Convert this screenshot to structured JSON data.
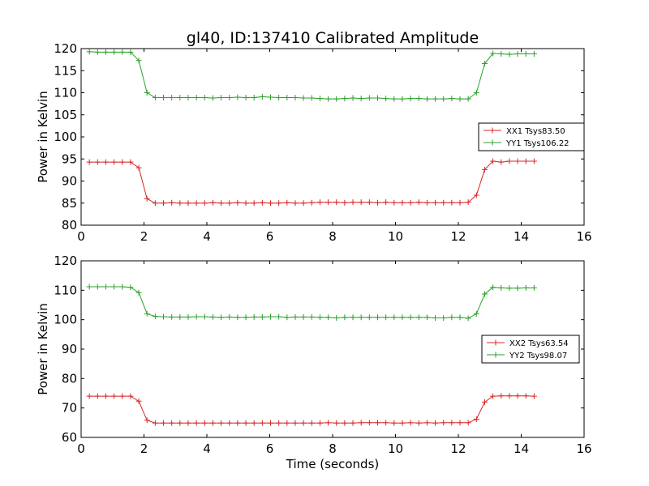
{
  "chart_data": [
    {
      "type": "line",
      "title": "gl40, ID:137410 Calibrated Amplitude",
      "xlabel": "",
      "ylabel": "Power in Kelvin",
      "xlim": [
        0,
        16
      ],
      "ylim": [
        80,
        120
      ],
      "xticks": [
        "0",
        "2",
        "4",
        "6",
        "8",
        "10",
        "12",
        "14",
        "16"
      ],
      "yticks": [
        "80",
        "85",
        "90",
        "95",
        "100",
        "105",
        "110",
        "115",
        "120"
      ],
      "grid": false,
      "legend_position": "right",
      "x": [
        0.262,
        0.524,
        0.786,
        1.048,
        1.31,
        1.572,
        1.834,
        2.096,
        2.358,
        2.62,
        2.882,
        3.144,
        3.406,
        3.668,
        3.93,
        4.192,
        4.454,
        4.716,
        4.978,
        5.24,
        5.502,
        5.764,
        6.026,
        6.288,
        6.55,
        6.812,
        7.074,
        7.336,
        7.598,
        7.86,
        8.122,
        8.384,
        8.646,
        8.908,
        9.17,
        9.432,
        9.694,
        9.956,
        10.218,
        10.48,
        10.742,
        11.004,
        11.266,
        11.528,
        11.79,
        12.052,
        12.314,
        12.576,
        12.838,
        13.1,
        13.362,
        13.624,
        13.886,
        14.148,
        14.41
      ],
      "series": [
        {
          "name": "XX1 Tsys83.50",
          "color": "#d62728",
          "values": [
            94.3,
            94.3,
            94.3,
            94.3,
            94.3,
            94.3,
            93.0,
            86.0,
            85.0,
            85.0,
            85.1,
            85.0,
            85.0,
            85.0,
            85.0,
            85.1,
            85.0,
            85.0,
            85.1,
            85.0,
            85.0,
            85.1,
            85.0,
            85.0,
            85.1,
            85.0,
            85.0,
            85.1,
            85.2,
            85.2,
            85.2,
            85.1,
            85.2,
            85.2,
            85.2,
            85.1,
            85.2,
            85.1,
            85.1,
            85.1,
            85.2,
            85.1,
            85.1,
            85.1,
            85.1,
            85.1,
            85.2,
            86.8,
            92.6,
            94.5,
            94.3,
            94.5,
            94.5,
            94.5,
            94.5
          ]
        },
        {
          "name": "YY1 Tsys106.22",
          "color": "#2ca02c",
          "values": [
            119.3,
            119.2,
            119.2,
            119.2,
            119.2,
            119.2,
            117.3,
            110.0,
            108.9,
            108.9,
            108.9,
            108.9,
            108.9,
            108.9,
            108.9,
            108.8,
            108.9,
            108.9,
            109.0,
            108.9,
            108.9,
            109.1,
            109.0,
            108.9,
            108.9,
            108.9,
            108.8,
            108.8,
            108.7,
            108.6,
            108.6,
            108.7,
            108.8,
            108.7,
            108.8,
            108.8,
            108.7,
            108.6,
            108.6,
            108.7,
            108.7,
            108.6,
            108.6,
            108.6,
            108.7,
            108.6,
            108.6,
            110.0,
            116.6,
            118.9,
            118.8,
            118.7,
            118.8,
            118.8,
            118.8
          ]
        }
      ]
    },
    {
      "type": "line",
      "title": "",
      "xlabel": "Time (seconds)",
      "ylabel": "Power in Kelvin",
      "xlim": [
        0,
        16
      ],
      "ylim": [
        60,
        120
      ],
      "xticks": [
        "0",
        "2",
        "4",
        "6",
        "8",
        "10",
        "12",
        "14",
        "16"
      ],
      "yticks": [
        "60",
        "70",
        "80",
        "90",
        "100",
        "110",
        "120"
      ],
      "grid": false,
      "legend_position": "right",
      "x": [
        0.262,
        0.524,
        0.786,
        1.048,
        1.31,
        1.572,
        1.834,
        2.096,
        2.358,
        2.62,
        2.882,
        3.144,
        3.406,
        3.668,
        3.93,
        4.192,
        4.454,
        4.716,
        4.978,
        5.24,
        5.502,
        5.764,
        6.026,
        6.288,
        6.55,
        6.812,
        7.074,
        7.336,
        7.598,
        7.86,
        8.122,
        8.384,
        8.646,
        8.908,
        9.17,
        9.432,
        9.694,
        9.956,
        10.218,
        10.48,
        10.742,
        11.004,
        11.266,
        11.528,
        11.79,
        12.052,
        12.314,
        12.576,
        12.838,
        13.1,
        13.362,
        13.624,
        13.886,
        14.148,
        14.41
      ],
      "series": [
        {
          "name": "XX2 Tsys63.54",
          "color": "#d62728",
          "values": [
            74.0,
            74.0,
            74.0,
            74.0,
            74.0,
            74.0,
            72.3,
            65.8,
            64.9,
            64.9,
            64.9,
            64.9,
            64.9,
            64.9,
            64.9,
            64.9,
            64.9,
            64.9,
            64.9,
            64.9,
            64.9,
            64.9,
            64.9,
            64.9,
            64.9,
            64.9,
            64.9,
            64.9,
            64.9,
            65.0,
            64.9,
            64.9,
            64.9,
            65.0,
            65.0,
            65.0,
            65.0,
            64.9,
            64.9,
            65.0,
            64.9,
            65.0,
            64.9,
            65.0,
            65.0,
            65.0,
            65.0,
            66.2,
            72.0,
            74.0,
            74.1,
            74.1,
            74.1,
            74.1,
            74.0
          ]
        },
        {
          "name": "YY2 Tsys98.07",
          "color": "#2ca02c",
          "values": [
            111.2,
            111.2,
            111.2,
            111.2,
            111.2,
            111.0,
            109.2,
            102.0,
            101.1,
            101.0,
            100.9,
            100.9,
            100.9,
            101.0,
            101.0,
            100.9,
            100.8,
            100.9,
            100.8,
            100.8,
            100.9,
            100.9,
            101.0,
            101.0,
            100.8,
            100.9,
            100.9,
            100.9,
            100.8,
            100.8,
            100.6,
            100.8,
            100.8,
            100.8,
            100.8,
            100.8,
            100.8,
            100.8,
            100.8,
            100.8,
            100.8,
            100.8,
            100.6,
            100.6,
            100.8,
            100.8,
            100.5,
            102.0,
            108.7,
            111.0,
            110.8,
            110.7,
            110.7,
            110.8,
            110.8
          ]
        }
      ]
    }
  ]
}
